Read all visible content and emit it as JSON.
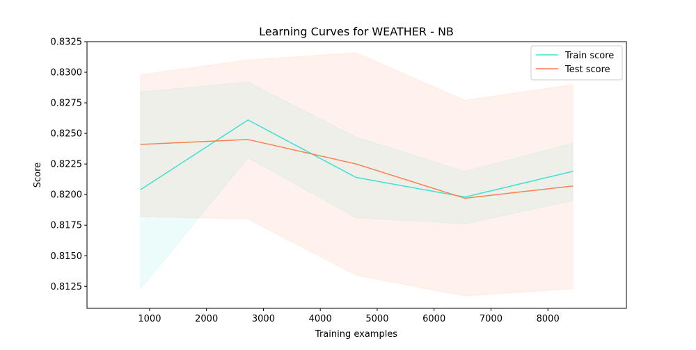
{
  "chart_data": {
    "type": "line",
    "title": "Learning Curves for WEATHER - NB",
    "xlabel": "Training examples",
    "ylabel": "Score",
    "x": [
      840,
      2730,
      4630,
      6540,
      8440
    ],
    "xlim": [
      -100,
      9380
    ],
    "ylim": [
      0.8107,
      0.8325
    ],
    "xticks": [
      1000,
      2000,
      3000,
      4000,
      5000,
      6000,
      7000,
      8000
    ],
    "yticks": [
      0.8125,
      0.815,
      0.8175,
      0.82,
      0.8225,
      0.825,
      0.8275,
      0.83,
      0.8325
    ],
    "xtick_labels": [
      "1000",
      "2000",
      "3000",
      "4000",
      "5000",
      "6000",
      "7000",
      "8000"
    ],
    "ytick_labels": [
      "0.8125",
      "0.8150",
      "0.8175",
      "0.8200",
      "0.8225",
      "0.8250",
      "0.8275",
      "0.8300",
      "0.8325"
    ],
    "grid": false,
    "legend_position": "top-right",
    "series": [
      {
        "name": "Train score",
        "color": "#40e0d0",
        "values": [
          0.8204,
          0.8261,
          0.8214,
          0.8198,
          0.8219
        ],
        "band_lower": [
          0.8123,
          0.823,
          0.8181,
          0.8176,
          0.8195
        ],
        "band_upper": [
          0.8284,
          0.8292,
          0.8247,
          0.8219,
          0.8242
        ]
      },
      {
        "name": "Test score",
        "color": "#ff7f50",
        "values": [
          0.8241,
          0.8245,
          0.8225,
          0.8197,
          0.8207
        ],
        "band_lower": [
          0.8182,
          0.818,
          0.8134,
          0.8117,
          0.8123
        ],
        "band_upper": [
          0.8298,
          0.831,
          0.8316,
          0.8277,
          0.829
        ]
      }
    ]
  }
}
